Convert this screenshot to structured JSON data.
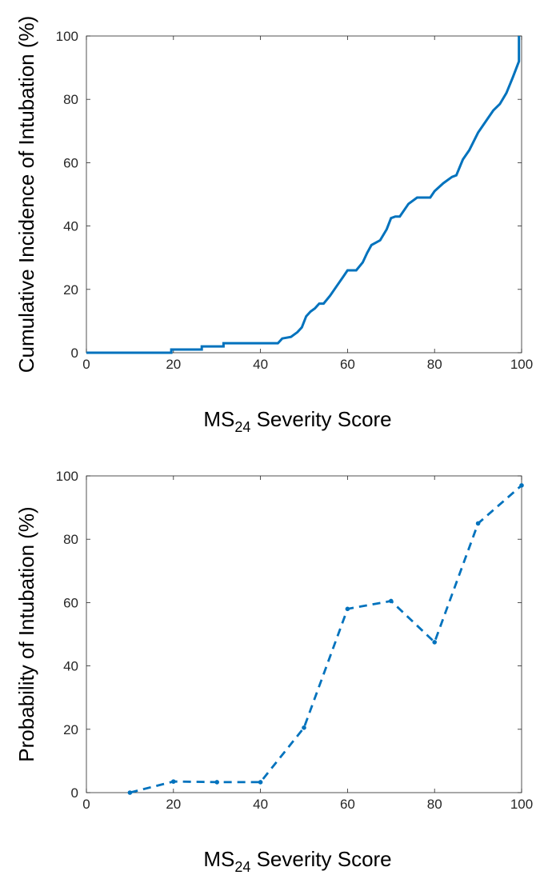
{
  "chart_data": [
    {
      "type": "line",
      "style": "step",
      "title": "",
      "xlabel": {
        "main": "MS",
        "sub": "24",
        "rest": " Severity Score"
      },
      "ylabel": "Cumulative Incidence of Intubation (%)",
      "xlim": [
        0,
        100
      ],
      "ylim": [
        0,
        100
      ],
      "xticks": [
        "0",
        "20",
        "40",
        "60",
        "80",
        "100"
      ],
      "yticks": [
        "0",
        "20",
        "40",
        "60",
        "80",
        "100"
      ],
      "grid": false,
      "line_color": "#0072BD",
      "series": [
        {
          "x": [
            0,
            19.5,
            19.5,
            26.5,
            26.5,
            31.5,
            31.5,
            44,
            45,
            47,
            48.5,
            49.5,
            50.5,
            51.5,
            52.5,
            53.5,
            54.5,
            56,
            57.5,
            59,
            60,
            62,
            63.5,
            64.5,
            65.5,
            67.5,
            69,
            70,
            71,
            72,
            74,
            76,
            79,
            80,
            82,
            84,
            85,
            86.5,
            88,
            90,
            92,
            93.5,
            95,
            96.5,
            98,
            99.4,
            99.4
          ],
          "y": [
            0,
            0,
            1,
            1,
            2,
            2,
            3,
            3,
            4.5,
            5,
            6.5,
            8,
            11.5,
            13,
            14,
            15.5,
            15.5,
            18,
            21,
            24,
            26,
            26,
            28.5,
            31.5,
            34,
            35.5,
            39,
            42.5,
            43,
            43,
            47,
            49,
            49,
            51,
            53.5,
            55.5,
            56,
            61,
            64,
            69.5,
            73.5,
            76.5,
            78.5,
            82,
            87,
            92,
            100
          ]
        }
      ]
    },
    {
      "type": "line",
      "style": "dashed-with-markers",
      "title": "",
      "xlabel": {
        "main": "MS",
        "sub": "24",
        "rest": " Severity Score"
      },
      "ylabel": "Probability of Intubation (%)",
      "xlim": [
        0,
        100
      ],
      "ylim": [
        0,
        100
      ],
      "xticks": [
        "0",
        "20",
        "40",
        "60",
        "80",
        "100"
      ],
      "yticks": [
        "0",
        "20",
        "40",
        "60",
        "80",
        "100"
      ],
      "grid": false,
      "line_color": "#0072BD",
      "series": [
        {
          "x": [
            10,
            20,
            30,
            40,
            50,
            60,
            70,
            80,
            90,
            100
          ],
          "y": [
            0,
            3.5,
            3.3,
            3.3,
            20.5,
            58,
            60.5,
            47.5,
            85,
            97
          ]
        }
      ]
    }
  ]
}
